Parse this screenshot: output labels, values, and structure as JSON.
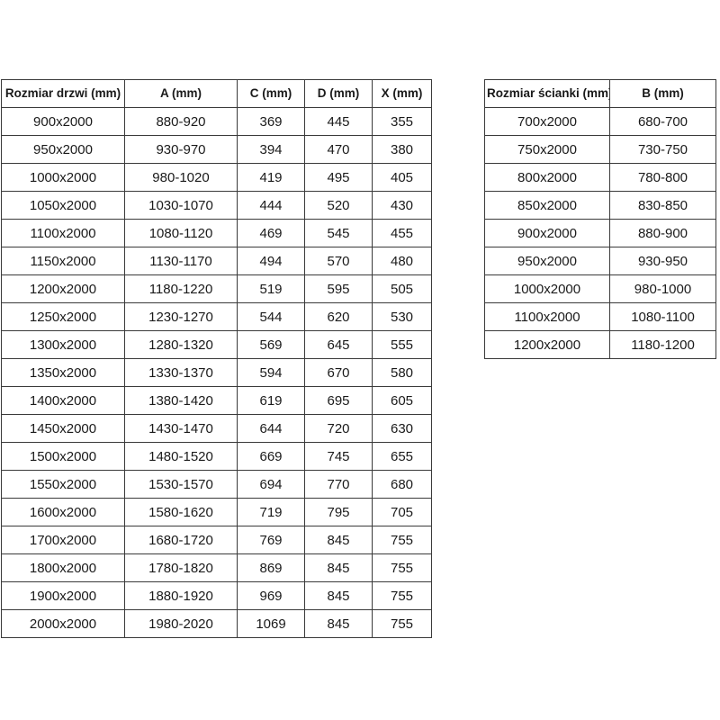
{
  "doors_table": {
    "name": "door-sizes",
    "headers": [
      "Rozmiar drzwi (mm)",
      "A (mm)",
      "C (mm)",
      "D (mm)",
      "X (mm)"
    ],
    "rows": [
      [
        "900x2000",
        "880-920",
        "369",
        "445",
        "355"
      ],
      [
        "950x2000",
        "930-970",
        "394",
        "470",
        "380"
      ],
      [
        "1000x2000",
        "980-1020",
        "419",
        "495",
        "405"
      ],
      [
        "1050x2000",
        "1030-1070",
        "444",
        "520",
        "430"
      ],
      [
        "1100x2000",
        "1080-1120",
        "469",
        "545",
        "455"
      ],
      [
        "1150x2000",
        "1130-1170",
        "494",
        "570",
        "480"
      ],
      [
        "1200x2000",
        "1180-1220",
        "519",
        "595",
        "505"
      ],
      [
        "1250x2000",
        "1230-1270",
        "544",
        "620",
        "530"
      ],
      [
        "1300x2000",
        "1280-1320",
        "569",
        "645",
        "555"
      ],
      [
        "1350x2000",
        "1330-1370",
        "594",
        "670",
        "580"
      ],
      [
        "1400x2000",
        "1380-1420",
        "619",
        "695",
        "605"
      ],
      [
        "1450x2000",
        "1430-1470",
        "644",
        "720",
        "630"
      ],
      [
        "1500x2000",
        "1480-1520",
        "669",
        "745",
        "655"
      ],
      [
        "1550x2000",
        "1530-1570",
        "694",
        "770",
        "680"
      ],
      [
        "1600x2000",
        "1580-1620",
        "719",
        "795",
        "705"
      ],
      [
        "1700x2000",
        "1680-1720",
        "769",
        "845",
        "755"
      ],
      [
        "1800x2000",
        "1780-1820",
        "869",
        "845",
        "755"
      ],
      [
        "1900x2000",
        "1880-1920",
        "969",
        "845",
        "755"
      ],
      [
        "2000x2000",
        "1980-2020",
        "1069",
        "845",
        "755"
      ]
    ]
  },
  "walls_table": {
    "name": "wall-sizes",
    "headers": [
      "Rozmiar ścianki (mm)",
      "B (mm)"
    ],
    "rows": [
      [
        "700x2000",
        "680-700"
      ],
      [
        "750x2000",
        "730-750"
      ],
      [
        "800x2000",
        "780-800"
      ],
      [
        "850x2000",
        "830-850"
      ],
      [
        "900x2000",
        "880-900"
      ],
      [
        "950x2000",
        "930-950"
      ],
      [
        "1000x2000",
        "980-1000"
      ],
      [
        "1100x2000",
        "1080-1100"
      ],
      [
        "1200x2000",
        "1180-1200"
      ]
    ]
  },
  "colors": {
    "border": "#3a3a3a",
    "text": "#1a1a1a",
    "background": "#ffffff"
  }
}
